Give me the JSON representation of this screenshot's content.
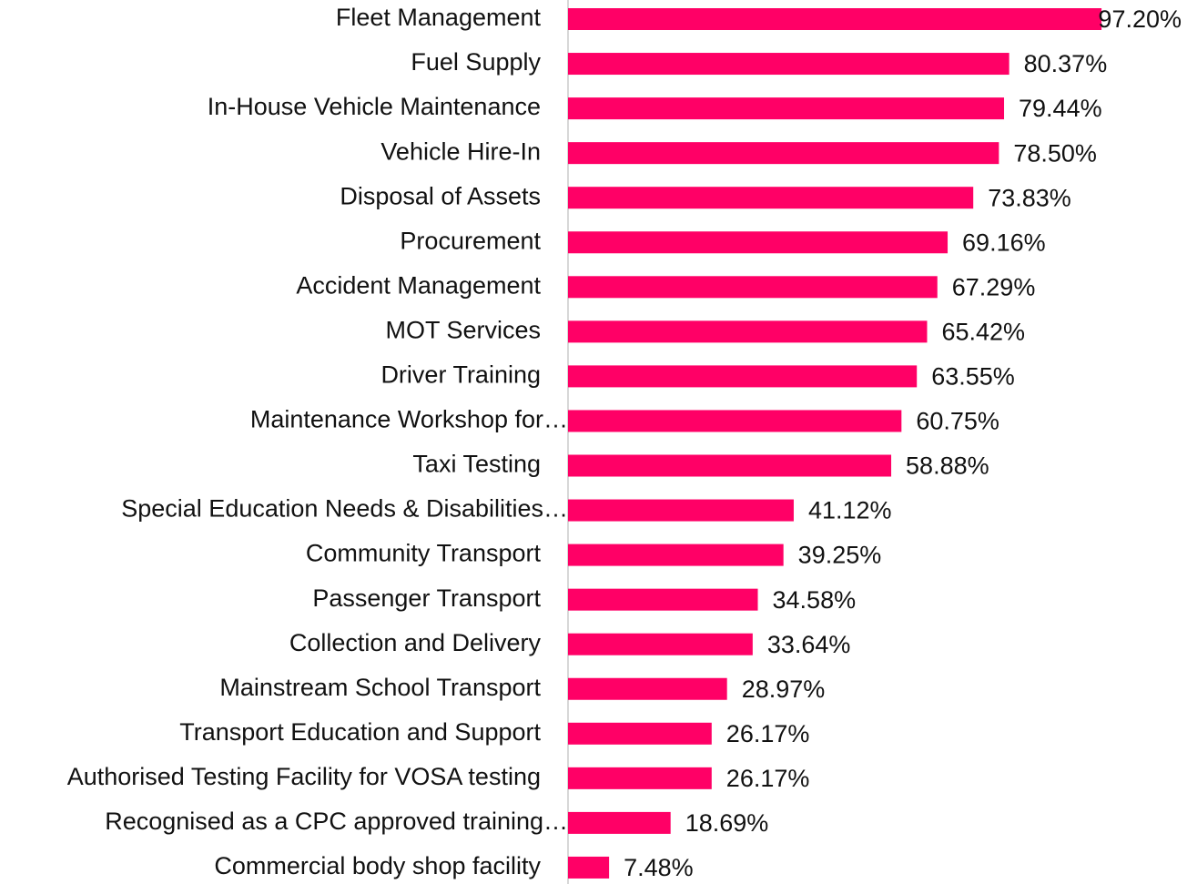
{
  "chart_data": {
    "type": "bar",
    "orientation": "horizontal",
    "color": "#ff0066",
    "xlim": [
      0,
      100
    ],
    "categories": [
      "Fleet Management",
      "Fuel Supply",
      "In-House Vehicle Maintenance",
      "Vehicle Hire-In",
      "Disposal of Assets",
      "Procurement",
      "Accident Management",
      "MOT Services",
      "Driver Training",
      "Maintenance Workshop for…",
      "Taxi Testing",
      "Special Education Needs & Disabilities…",
      "Community Transport",
      "Passenger Transport",
      "Collection and Delivery",
      "Mainstream School Transport",
      "Transport Education and Support",
      "Authorised Testing Facility for VOSA testing",
      "Recognised as a CPC approved training…",
      "Commercial body shop facility"
    ],
    "values": [
      97.2,
      80.37,
      79.44,
      78.5,
      73.83,
      69.16,
      67.29,
      65.42,
      63.55,
      60.75,
      58.88,
      41.12,
      39.25,
      34.58,
      33.64,
      28.97,
      26.17,
      26.17,
      18.69,
      7.48
    ],
    "value_labels": [
      "97.20%",
      "80.37%",
      "79.44%",
      "78.50%",
      "73.83%",
      "69.16%",
      "67.29%",
      "65.42%",
      "63.55%",
      "60.75%",
      "58.88%",
      "41.12%",
      "39.25%",
      "34.58%",
      "33.64%",
      "28.97%",
      "26.17%",
      "26.17%",
      "18.69%",
      "7.48%"
    ]
  }
}
